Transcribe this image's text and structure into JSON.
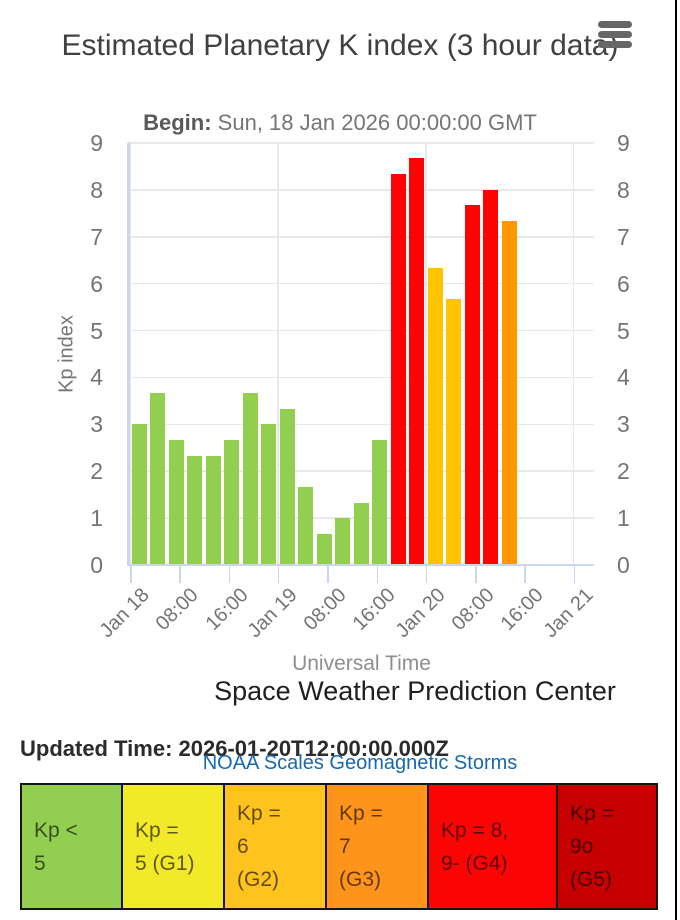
{
  "header": {
    "title": "Estimated Planetary K index (3 hour data)",
    "begin_label": "Begin:",
    "begin_value": "Sun, 18 Jan 2026 00:00:00 GMT",
    "menu_icon": "hamburger-icon"
  },
  "chart_data": {
    "type": "bar",
    "title": "Estimated Planetary K index (3 hour data)",
    "xlabel": "Universal Time",
    "ylabel": "Kp index",
    "ylim": [
      0,
      9
    ],
    "y_ticks": [
      0,
      1,
      2,
      3,
      4,
      5,
      6,
      7,
      8,
      9
    ],
    "x_tick_labels": [
      "Jan 18",
      "08:00",
      "16:00",
      "Jan 19",
      "08:00",
      "16:00",
      "Jan 20",
      "08:00",
      "16:00",
      "Jan 21"
    ],
    "x_range": [
      "2026-01-18 00:00 UTC",
      "2026-01-21 00:00 UTC"
    ],
    "bar_interval_hours": 3,
    "grid": true,
    "legend_position": "none",
    "bars": [
      {
        "time": "2026-01-18 00:00",
        "kp": 3.0,
        "level": "green"
      },
      {
        "time": "2026-01-18 03:00",
        "kp": 3.67,
        "level": "green"
      },
      {
        "time": "2026-01-18 06:00",
        "kp": 2.67,
        "level": "green"
      },
      {
        "time": "2026-01-18 09:00",
        "kp": 2.33,
        "level": "green"
      },
      {
        "time": "2026-01-18 12:00",
        "kp": 2.33,
        "level": "green"
      },
      {
        "time": "2026-01-18 15:00",
        "kp": 2.67,
        "level": "green"
      },
      {
        "time": "2026-01-18 18:00",
        "kp": 3.67,
        "level": "green"
      },
      {
        "time": "2026-01-18 21:00",
        "kp": 3.0,
        "level": "green"
      },
      {
        "time": "2026-01-19 00:00",
        "kp": 3.33,
        "level": "green"
      },
      {
        "time": "2026-01-19 03:00",
        "kp": 1.67,
        "level": "green"
      },
      {
        "time": "2026-01-19 06:00",
        "kp": 0.67,
        "level": "green"
      },
      {
        "time": "2026-01-19 09:00",
        "kp": 1.0,
        "level": "green"
      },
      {
        "time": "2026-01-19 12:00",
        "kp": 1.33,
        "level": "green"
      },
      {
        "time": "2026-01-19 15:00",
        "kp": 2.67,
        "level": "green"
      },
      {
        "time": "2026-01-19 18:00",
        "kp": 8.33,
        "level": "red"
      },
      {
        "time": "2026-01-19 21:00",
        "kp": 8.67,
        "level": "red"
      },
      {
        "time": "2026-01-20 00:00",
        "kp": 6.33,
        "level": "gold"
      },
      {
        "time": "2026-01-20 03:00",
        "kp": 5.67,
        "level": "gold"
      },
      {
        "time": "2026-01-20 06:00",
        "kp": 7.67,
        "level": "red"
      },
      {
        "time": "2026-01-20 09:00",
        "kp": 8.0,
        "level": "red"
      },
      {
        "time": "2026-01-20 12:00",
        "kp": 7.33,
        "level": "orange"
      }
    ],
    "level_colors": {
      "green": "#92CE4F",
      "gold": "#FFC400",
      "orange": "#FF9800",
      "red": "#FC0404"
    }
  },
  "footer": {
    "source": "Space Weather Prediction Center",
    "updated_label": "Updated Time:",
    "updated_value": "2026-01-20T12:00:00.000Z",
    "link_text": "NOAA Scales Geomagnetic Storms"
  },
  "legend": {
    "items": [
      {
        "text": "Kp <\n5",
        "color": "#92CE4F",
        "scale": ""
      },
      {
        "text": "Kp =\n5 (G1)",
        "color": "#F2E929",
        "scale": "G1"
      },
      {
        "text": "Kp =\n6\n(G2)",
        "color": "#FFC31F",
        "scale": "G2"
      },
      {
        "text": "Kp =\n7\n(G3)",
        "color": "#FF941C",
        "scale": "G3"
      },
      {
        "text": "Kp = 8,\n9- (G4)",
        "color": "#FC0404",
        "scale": "G4"
      },
      {
        "text": "Kp =\n9o\n(G5)",
        "color": "#C60000",
        "scale": "G5"
      }
    ]
  }
}
